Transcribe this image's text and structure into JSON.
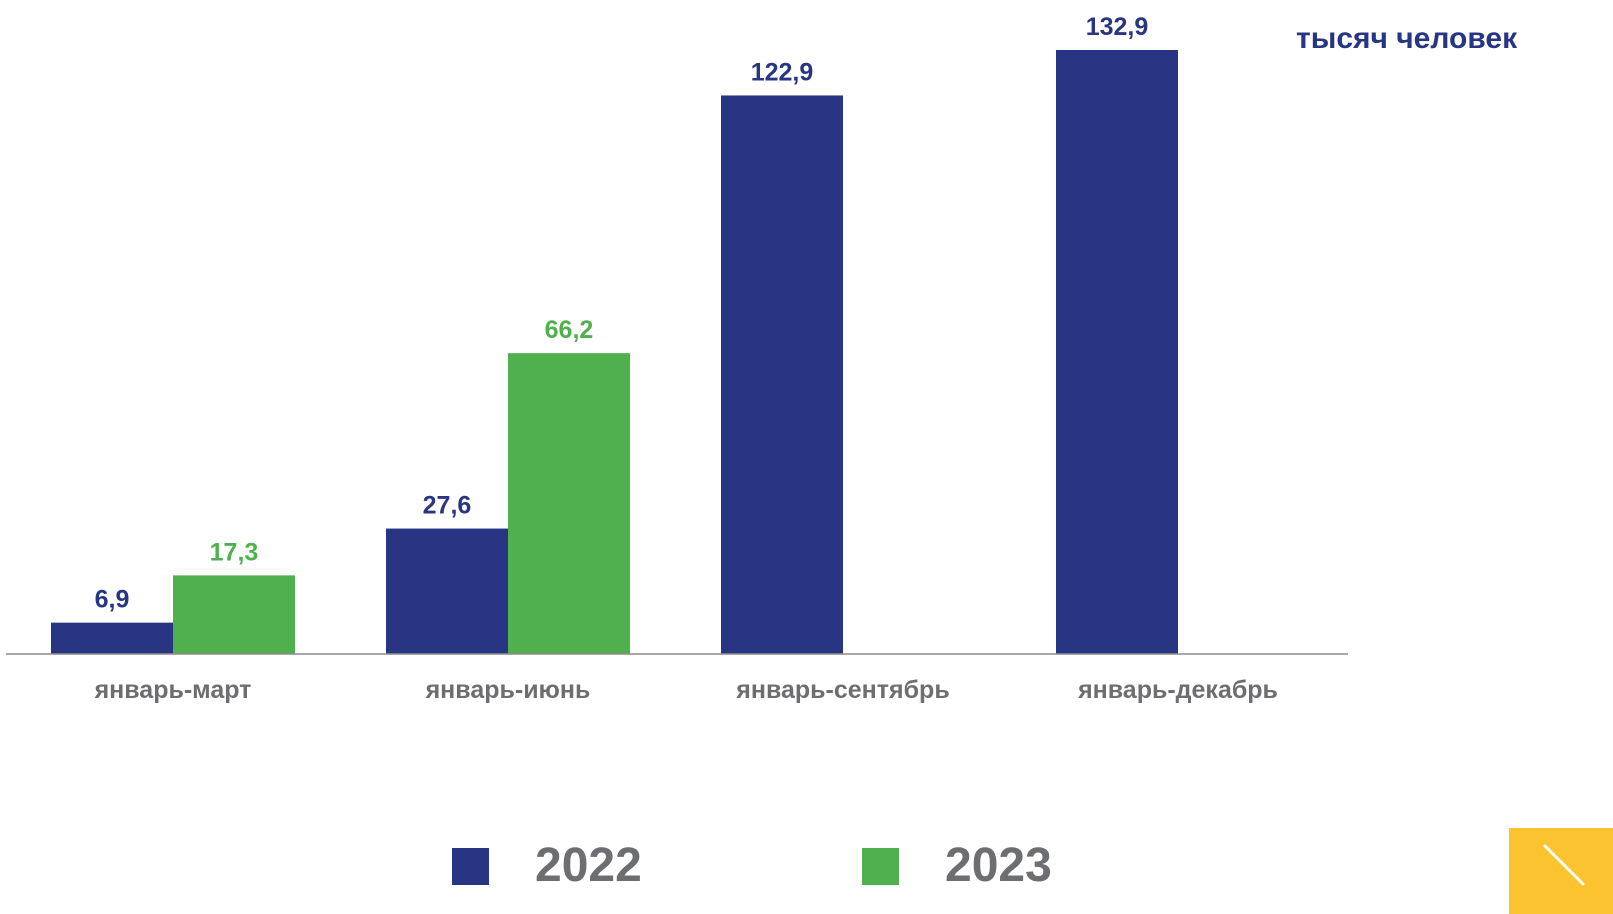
{
  "chart_data": {
    "type": "bar",
    "unit_label": "тысяч человек",
    "categories": [
      "январь-март",
      "январь-июнь",
      "январь-сентябрь",
      "январь-декабрь"
    ],
    "series": [
      {
        "name": "2022",
        "color": "#283583",
        "values": [
          6.9,
          27.6,
          122.9,
          132.9
        ],
        "labels": [
          "6,9",
          "27,6",
          "122,9",
          "132,9"
        ]
      },
      {
        "name": "2023",
        "color": "#50b04e",
        "values": [
          17.3,
          66.2,
          null,
          null
        ],
        "labels": [
          "17,3",
          "66,2",
          null,
          null
        ]
      }
    ],
    "ylim": [
      0,
      132.9
    ],
    "grid": false,
    "axis_label_color": "#6d6e71",
    "legend_position": "bottom"
  },
  "decor": {
    "corner_badge_color": "#fcc331",
    "corner_badge_icon": "arrow-down-right-icon"
  }
}
